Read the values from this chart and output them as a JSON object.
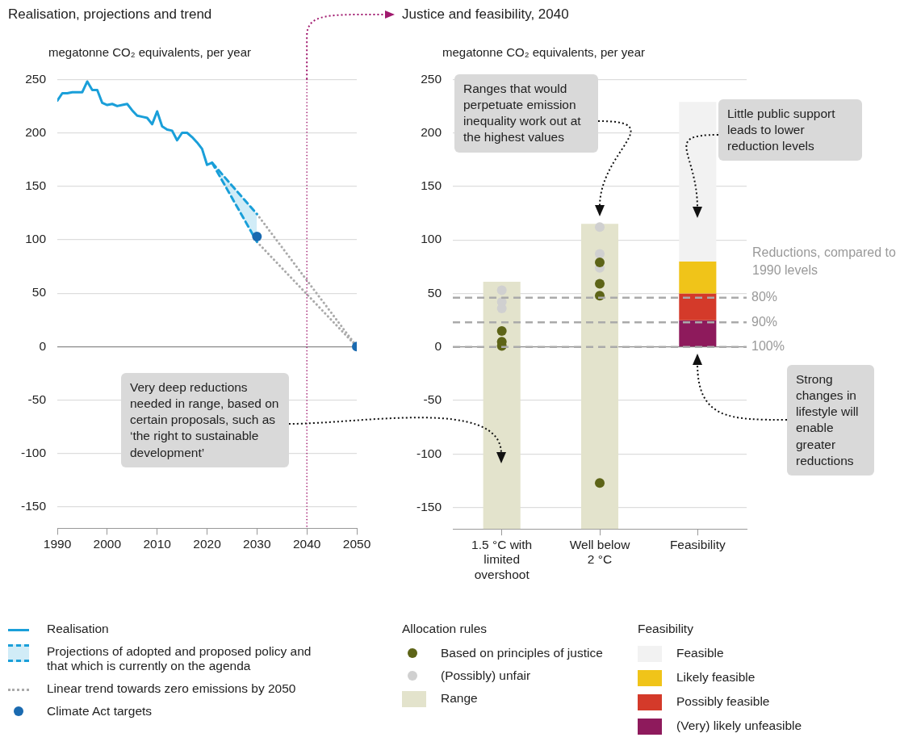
{
  "chart_data": [
    {
      "type": "line",
      "title": "Realisation, projections and trend",
      "ylabel": "megatonne CO₂ equivalents, per year",
      "xlim": [
        1990,
        2050
      ],
      "xticks": [
        1990,
        2000,
        2010,
        2020,
        2030,
        2040,
        2050
      ],
      "ylim": [
        -170,
        250
      ],
      "yticks": [
        -150,
        -100,
        -50,
        0,
        50,
        100,
        150,
        200,
        250
      ],
      "grid": "y",
      "legend": "bottom",
      "ref_lines": [
        {
          "axis": "x",
          "value": 2040,
          "color": "#a0196e",
          "line_style": "dotted"
        }
      ],
      "series": [
        {
          "name": "Realisation",
          "type": "line",
          "color": "#1a9fd9",
          "line_style": "solid",
          "marker": "none",
          "x": [
            1990,
            1991,
            1992,
            1993,
            1994,
            1995,
            1996,
            1997,
            1998,
            1999,
            2000,
            2001,
            2002,
            2003,
            2004,
            2005,
            2006,
            2007,
            2008,
            2009,
            2010,
            2011,
            2012,
            2013,
            2014,
            2015,
            2016,
            2017,
            2018,
            2019,
            2020,
            2021
          ],
          "values": [
            230,
            237,
            237,
            238,
            238,
            238,
            248,
            240,
            240,
            228,
            226,
            227,
            225,
            226,
            227,
            221,
            216,
            215,
            214,
            208,
            220,
            206,
            203,
            202,
            193,
            200,
            200,
            196,
            191,
            185,
            170,
            172
          ]
        },
        {
          "name": "Projections of adopted and proposed policy and that which is currently on the agenda",
          "type": "line",
          "color": "#1a9fd9",
          "line_style": "dashed",
          "marker": "none",
          "x": [
            2021,
            2030
          ],
          "values": [
            172,
            124
          ],
          "lower": [
            172,
            98
          ],
          "upper": [
            172,
            124
          ]
        },
        {
          "type": "line",
          "color": "#1a9fd9",
          "line_style": "dashed",
          "marker": "none",
          "x": [
            2021,
            2030
          ],
          "values": [
            172,
            98
          ]
        },
        {
          "name": "Linear trend towards zero emissions by 2050",
          "type": "line",
          "color": "#aaaaaa",
          "line_style": "dotted",
          "marker": "none",
          "x": [
            2030,
            2050
          ],
          "values": [
            124,
            0
          ]
        },
        {
          "type": "line",
          "color": "#aaaaaa",
          "line_style": "dotted",
          "marker": "none",
          "x": [
            2030,
            2050
          ],
          "values": [
            98,
            0
          ]
        },
        {
          "name": "Climate Act targets",
          "type": "scatter",
          "color": "#1a6ab0",
          "marker": "circle",
          "x": [
            2030,
            2050
          ],
          "values": [
            103,
            0
          ]
        }
      ]
    },
    {
      "type": "bar",
      "title": "Justice and feasibility, 2040",
      "ylabel": "megatonne CO₂ equivalents, per year",
      "categories": [
        "1.5 °C with limited overshoot",
        "Well below 2 °C",
        "Feasibility"
      ],
      "ylim": [
        -170,
        250
      ],
      "yticks": [
        -150,
        -100,
        -50,
        0,
        50,
        100,
        150,
        200,
        250
      ],
      "grid": "y",
      "legend": "bottom",
      "legend_title": "Allocation rules",
      "ref_lines": [
        {
          "axis": "y",
          "value": 46,
          "color": "#aaaaaa",
          "line_style": "dashed"
        },
        {
          "axis": "y",
          "value": 23,
          "color": "#aaaaaa",
          "line_style": "dashed"
        },
        {
          "axis": "y",
          "value": 0,
          "color": "#aaaaaa",
          "line_style": "dashed"
        }
      ],
      "annotations": [
        "Very deep reductions needed in range, based on certain proposals, such as ‘the right to sustainable development’",
        "Ranges that would perpetuate emission inequality work out at the highest values",
        "Little public support leads to lower reduction levels",
        "Strong changes in lifestyle will enable greater reductions",
        "Reductions, compared to 1990 levels",
        "80%",
        "90%",
        "100%",
        "Feasibility"
      ],
      "series": [
        {
          "name": "Based on principles of justice",
          "type": "scatter",
          "color": "#5d6417",
          "marker": "circle",
          "x": [
            "1.5 °C with limited overshoot",
            "1.5 °C with limited overshoot",
            "1.5 °C with limited overshoot",
            "Well below 2 °C",
            "Well below 2 °C",
            "Well below 2 °C",
            "Well below 2 °C"
          ],
          "values": [
            15,
            5,
            1,
            79,
            59,
            48,
            -127
          ]
        },
        {
          "name": "(Possibly) unfair",
          "type": "scatter",
          "color": "#d0d0d0",
          "marker": "circle",
          "x": [
            "1.5 °C with limited overshoot",
            "1.5 °C with limited overshoot",
            "1.5 °C with limited overshoot",
            "Well below 2 °C",
            "Well below 2 °C",
            "Well below 2 °C"
          ],
          "values": [
            53,
            42,
            36,
            112,
            87,
            74
          ]
        },
        {
          "name": "Range",
          "type": "bar",
          "color": "#e3e3cc",
          "values": [
            231,
            285,
            null
          ],
          "base": [
            -170,
            -170,
            null
          ]
        },
        {
          "name": "Feasible",
          "type": "bar",
          "color": "#f2f2f2",
          "values": [
            null,
            null,
            149
          ],
          "base": [
            null,
            null,
            80
          ]
        },
        {
          "name": "Likely feasible",
          "type": "bar",
          "color": "#f0c419",
          "values": [
            null,
            null,
            30
          ],
          "base": [
            null,
            null,
            50
          ]
        },
        {
          "name": "Possibly feasible",
          "type": "bar",
          "color": "#d43a2a",
          "values": [
            null,
            null,
            25
          ],
          "base": [
            null,
            null,
            25
          ]
        },
        {
          "name": "(Very) likely unfeasible",
          "type": "bar",
          "color": "#8e1a5c",
          "values": [
            null,
            null,
            25
          ],
          "base": [
            null,
            null,
            0
          ]
        }
      ]
    }
  ]
}
